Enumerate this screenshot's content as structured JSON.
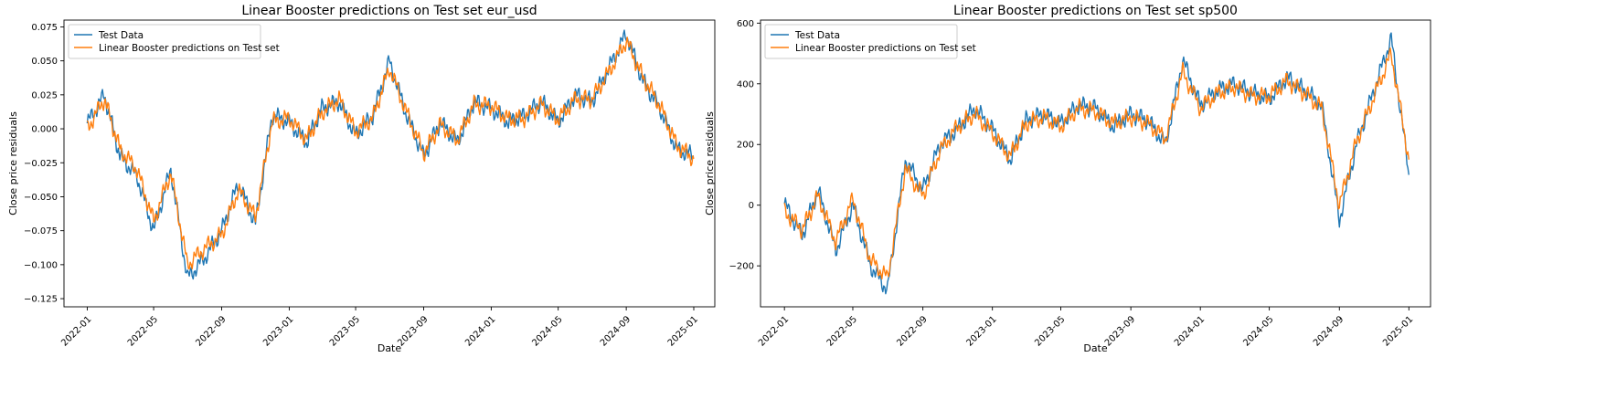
{
  "colors": {
    "test": "#1f77b4",
    "pred": "#ff7f0e",
    "axis": "#000000",
    "legend_border": "#cccccc"
  },
  "chart_data": [
    {
      "type": "line",
      "title": "Linear Booster predictions on Test set eur_usd",
      "xlabel": "Date",
      "ylabel": "Close price residuals",
      "xlim": [
        "2021-11-20",
        "2025-02-08"
      ],
      "ylim": [
        -0.131,
        0.08
      ],
      "xticks": [
        "2022-01",
        "2022-05",
        "2022-09",
        "2023-01",
        "2023-05",
        "2023-09",
        "2024-01",
        "2024-05",
        "2024-09",
        "2025-01"
      ],
      "yticks": [
        0.075,
        0.05,
        0.025,
        0.0,
        -0.025,
        -0.05,
        -0.075,
        -0.1,
        -0.125
      ],
      "ytick_labels": [
        "0.075",
        "0.050",
        "0.025",
        "0.000",
        "−0.025",
        "−0.050",
        "−0.075",
        "−0.100",
        "−0.125"
      ],
      "legend": {
        "position": "top-left",
        "entries": [
          "Test Data",
          "Linear Booster predictions on Test set"
        ]
      },
      "x": [
        "2022-01-01",
        "2022-02-01",
        "2022-03-01",
        "2022-04-01",
        "2022-05-01",
        "2022-06-01",
        "2022-07-01",
        "2022-08-01",
        "2022-09-01",
        "2022-10-01",
        "2022-11-01",
        "2022-12-01",
        "2023-01-01",
        "2023-02-01",
        "2023-03-01",
        "2023-04-01",
        "2023-05-01",
        "2023-06-01",
        "2023-07-01",
        "2023-08-01",
        "2023-09-01",
        "2023-10-01",
        "2023-11-01",
        "2023-12-01",
        "2024-01-01",
        "2024-02-01",
        "2024-03-01",
        "2024-04-01",
        "2024-05-01",
        "2024-06-01",
        "2024-07-01",
        "2024-08-01",
        "2024-09-01",
        "2024-10-01",
        "2024-11-01",
        "2024-12-01",
        "2025-01-01"
      ],
      "series": [
        {
          "name": "Test Data",
          "values": [
            0.004,
            0.025,
            -0.02,
            -0.035,
            -0.075,
            -0.03,
            -0.11,
            -0.095,
            -0.075,
            -0.04,
            -0.07,
            0.01,
            0.005,
            -0.01,
            0.015,
            0.02,
            -0.005,
            0.01,
            0.05,
            0.01,
            -0.02,
            0.005,
            -0.01,
            0.02,
            0.015,
            0.005,
            0.01,
            0.02,
            0.005,
            0.025,
            0.02,
            0.045,
            0.07,
            0.035,
            0.015,
            -0.015,
            -0.02
          ]
        },
        {
          "name": "Linear Booster predictions on Test set",
          "values": [
            0.0,
            0.022,
            -0.015,
            -0.03,
            -0.068,
            -0.032,
            -0.1,
            -0.088,
            -0.078,
            -0.045,
            -0.065,
            0.005,
            0.008,
            -0.008,
            0.012,
            0.022,
            -0.002,
            0.008,
            0.045,
            0.012,
            -0.018,
            0.003,
            -0.008,
            0.018,
            0.017,
            0.007,
            0.008,
            0.018,
            0.007,
            0.022,
            0.022,
            0.042,
            0.065,
            0.038,
            0.017,
            -0.012,
            -0.022
          ]
        }
      ]
    },
    {
      "type": "line",
      "title": "Linear Booster predictions on Test set sp500",
      "xlabel": "Date",
      "ylabel": "Close price residuals",
      "xlim": [
        "2021-11-20",
        "2025-02-08"
      ],
      "ylim": [
        -335,
        610
      ],
      "xticks": [
        "2022-01",
        "2022-05",
        "2022-09",
        "2023-01",
        "2023-05",
        "2023-09",
        "2024-01",
        "2024-05",
        "2024-09",
        "2025-01"
      ],
      "yticks": [
        600,
        400,
        200,
        0,
        -200
      ],
      "ytick_labels": [
        "600",
        "400",
        "200",
        "0",
        "−200"
      ],
      "legend": {
        "position": "top-left",
        "entries": [
          "Test Data",
          "Linear Booster predictions on Test set"
        ]
      },
      "x": [
        "2022-01-01",
        "2022-02-01",
        "2022-03-01",
        "2022-04-01",
        "2022-05-01",
        "2022-06-01",
        "2022-07-01",
        "2022-08-01",
        "2022-09-01",
        "2022-10-01",
        "2022-11-01",
        "2022-12-01",
        "2023-01-01",
        "2023-02-01",
        "2023-03-01",
        "2023-04-01",
        "2023-05-01",
        "2023-06-01",
        "2023-07-01",
        "2023-08-01",
        "2023-09-01",
        "2023-10-01",
        "2023-11-01",
        "2023-12-01",
        "2024-01-01",
        "2024-02-01",
        "2024-03-01",
        "2024-04-01",
        "2024-05-01",
        "2024-06-01",
        "2024-07-01",
        "2024-08-01",
        "2024-09-01",
        "2024-10-01",
        "2024-11-01",
        "2024-12-01",
        "2025-01-01"
      ],
      "series": [
        {
          "name": "Test Data",
          "values": [
            5,
            -100,
            50,
            -150,
            0,
            -200,
            -280,
            150,
            50,
            200,
            250,
            320,
            250,
            150,
            280,
            300,
            270,
            330,
            320,
            260,
            300,
            280,
            200,
            480,
            330,
            380,
            400,
            370,
            350,
            420,
            380,
            330,
            -50,
            200,
            380,
            550,
            100
          ]
        },
        {
          "name": "Linear Booster predictions on Test set",
          "values": [
            -20,
            -80,
            30,
            -120,
            20,
            -180,
            -240,
            120,
            30,
            180,
            260,
            300,
            240,
            160,
            270,
            290,
            260,
            320,
            310,
            270,
            290,
            270,
            220,
            440,
            320,
            370,
            390,
            360,
            360,
            410,
            370,
            320,
            0,
            210,
            360,
            500,
            150
          ]
        }
      ]
    }
  ]
}
